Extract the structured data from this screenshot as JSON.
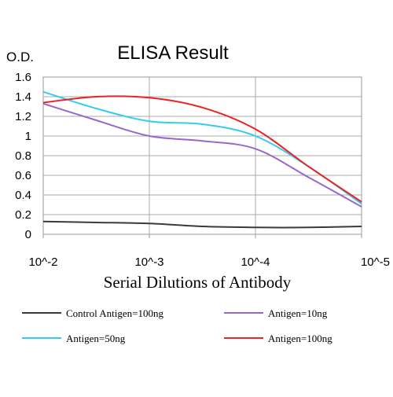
{
  "chart_data": {
    "type": "line",
    "title": "ELISA Result",
    "ylabel": "O.D.",
    "xlabel": "Serial Dilutions of Antibody",
    "categories": [
      "10^-2",
      "10^-3",
      "10^-4",
      "10^-5"
    ],
    "ylim": [
      0,
      1.6
    ],
    "yticks": [
      "0",
      "0.2",
      "0.4",
      "0.6",
      "0.8",
      "1",
      "1.2",
      "1.4",
      "1.6"
    ],
    "grid": true,
    "legend_position": "bottom",
    "series": [
      {
        "name": "Control Antigen=100ng",
        "color": "#3a3a3a",
        "x": [
          0,
          0.5,
          1,
          1.5,
          2,
          2.5,
          3
        ],
        "values": [
          0.13,
          0.12,
          0.11,
          0.08,
          0.07,
          0.07,
          0.08
        ]
      },
      {
        "name": "Antigen=10ng",
        "color": "#9966cc",
        "x": [
          0,
          0.5,
          1,
          1.5,
          2,
          2.5,
          3
        ],
        "values": [
          1.33,
          1.16,
          1.0,
          0.95,
          0.87,
          0.58,
          0.28
        ]
      },
      {
        "name": "Antigen=50ng",
        "color": "#33ccee",
        "x": [
          0,
          0.5,
          1,
          1.5,
          2,
          2.5,
          3
        ],
        "values": [
          1.45,
          1.28,
          1.15,
          1.12,
          1.0,
          0.69,
          0.31
        ]
      },
      {
        "name": "Antigen=100ng",
        "color": "#ee2222",
        "x": [
          0,
          0.5,
          1,
          1.5,
          2,
          2.5,
          3
        ],
        "values": [
          1.34,
          1.4,
          1.39,
          1.29,
          1.07,
          0.69,
          0.33
        ]
      }
    ]
  }
}
